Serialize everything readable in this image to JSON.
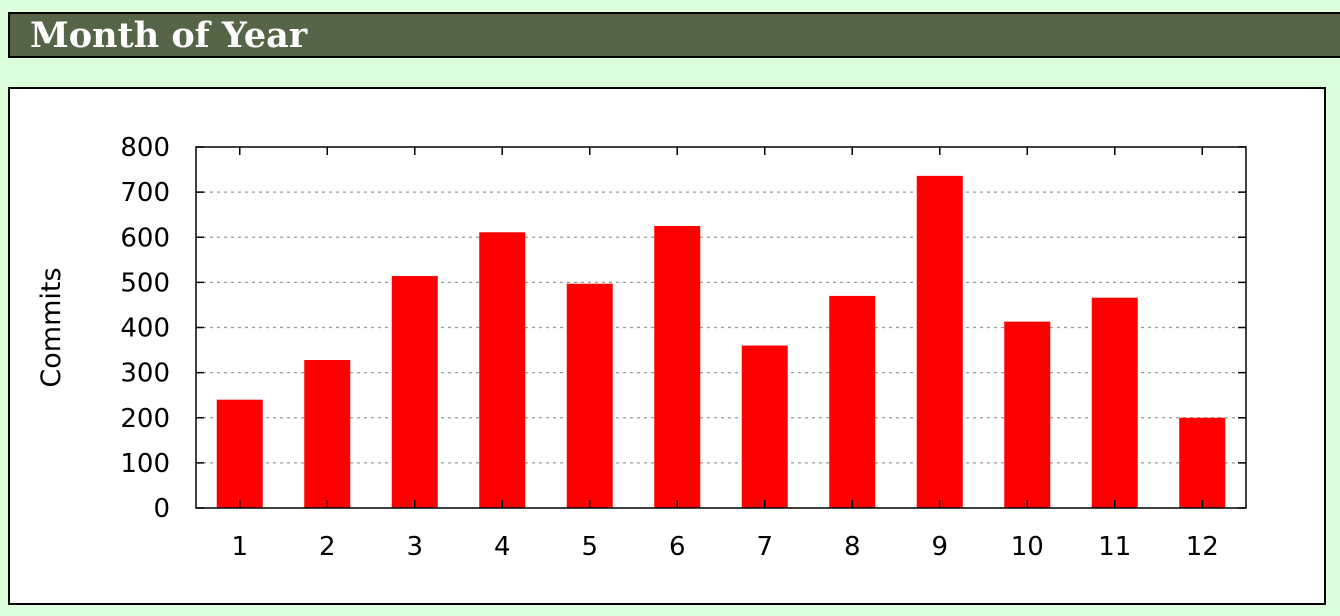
{
  "header": {
    "title": "Month of Year"
  },
  "chart_data": {
    "type": "bar",
    "title": "",
    "xlabel": "",
    "ylabel": "Commits",
    "categories": [
      "1",
      "2",
      "3",
      "4",
      "5",
      "6",
      "7",
      "8",
      "9",
      "10",
      "11",
      "12"
    ],
    "values": [
      240,
      328,
      514,
      611,
      497,
      625,
      360,
      470,
      736,
      413,
      466,
      200
    ],
    "yticks": [
      "0",
      "100",
      "200",
      "300",
      "400",
      "500",
      "600",
      "700",
      "800"
    ],
    "ylim": [
      0,
      800
    ],
    "grid": true,
    "colors": {
      "bar": "#ff0000",
      "grid": "#999999",
      "axis": "#000000"
    }
  }
}
